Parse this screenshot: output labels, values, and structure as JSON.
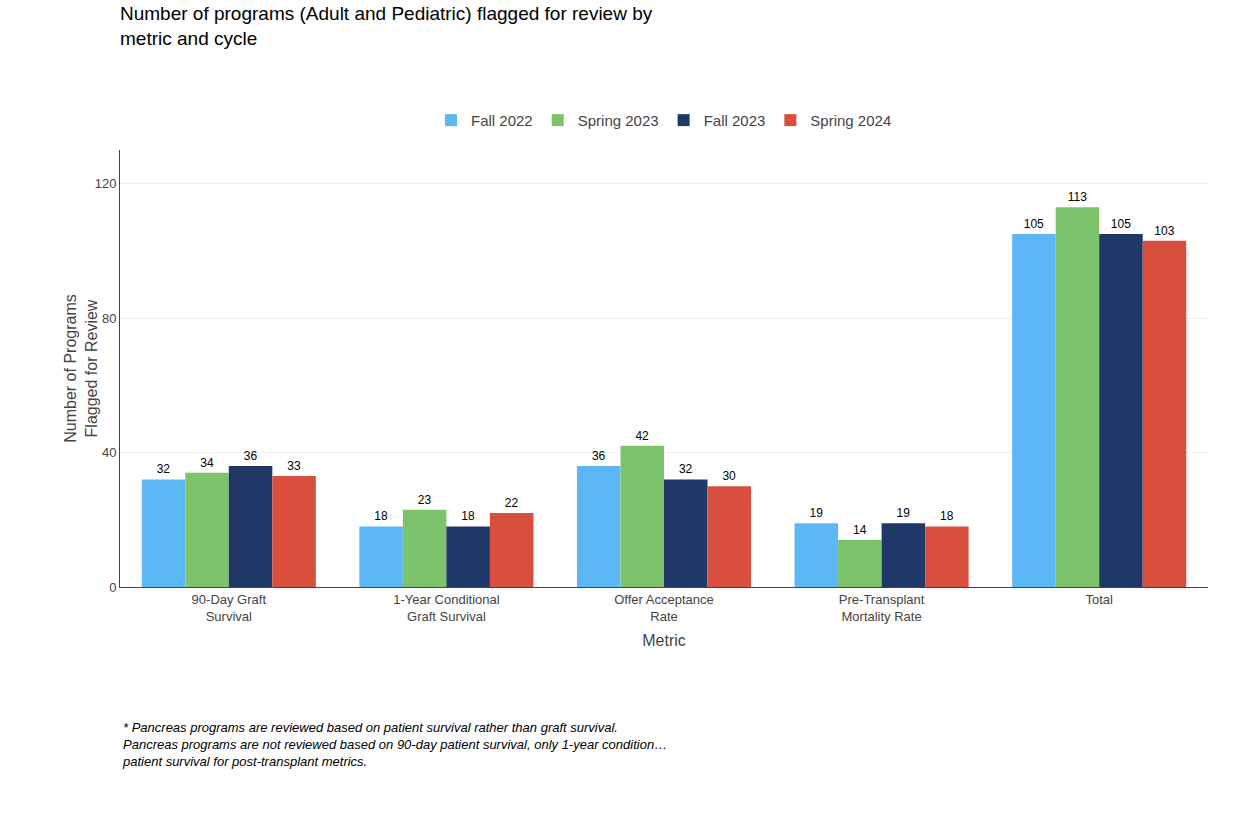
{
  "chart_data": {
    "type": "bar",
    "title": "Number of programs (Adult and Pediatric) flagged for review by\nmetric and cycle",
    "x_label": "Metric",
    "y_label": "Number of Programs\nFlagged for Review",
    "categories": [
      "90-Day Graft\nSurvival",
      "1-Year Conditional\nGraft Survival",
      "Offer Acceptance\nRate",
      "Pre-Transplant\nMortality Rate",
      "Total"
    ],
    "series": [
      {
        "name": "Fall 2022",
        "color": "#5BB8F5",
        "values": [
          32,
          18,
          36,
          19,
          105
        ]
      },
      {
        "name": "Spring 2023",
        "color": "#7DC36B",
        "values": [
          34,
          23,
          42,
          14,
          113
        ]
      },
      {
        "name": "Fall 2023",
        "color": "#1F3868",
        "values": [
          36,
          18,
          32,
          19,
          105
        ]
      },
      {
        "name": "Spring 2024",
        "color": "#D94F3D",
        "values": [
          33,
          22,
          30,
          18,
          103
        ]
      }
    ],
    "ylim": [
      0,
      130
    ],
    "yticks": [
      0,
      40,
      80,
      120
    ],
    "grid": true,
    "legend": "top",
    "data_labels": true,
    "annotations": [
      "* Pancreas programs are reviewed based on patient survival rather than graft survival.\nPancreas programs are not reviewed based on 90-day patient survival, only 1-year condition…\npatient survival for post-transplant metrics."
    ]
  }
}
